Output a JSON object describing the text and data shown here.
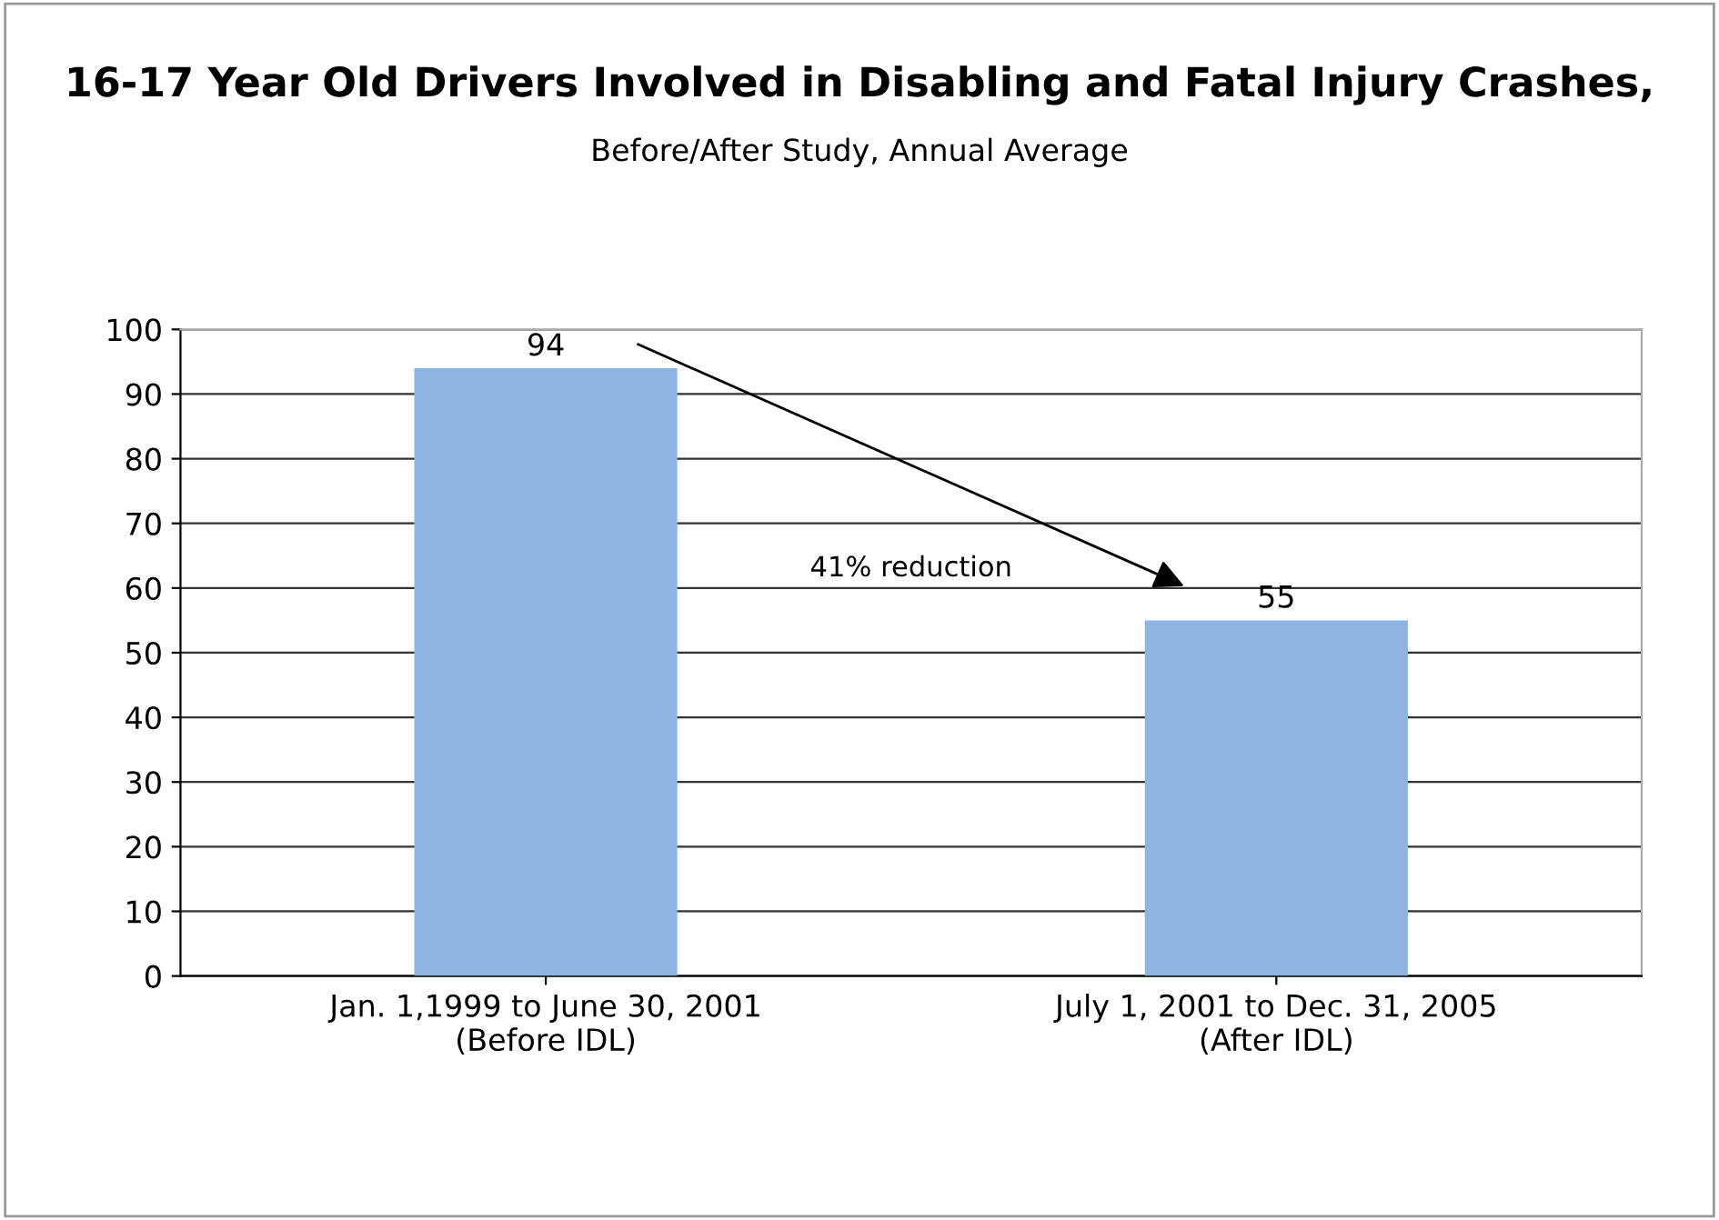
{
  "chart_data": {
    "type": "bar",
    "title": "16-17 Year Old Drivers Involved in Disabling and Fatal Injury Crashes,",
    "subtitle": "Before/After Study, Annual Average",
    "categories": [
      "Jan. 1,1999 to June 30, 2001\n(Before IDL)",
      "July 1, 2001 to Dec. 31, 2005\n(After IDL)"
    ],
    "values": [
      94,
      55
    ],
    "color": "#8db4e2",
    "ylim": [
      0,
      100
    ],
    "yticks": [
      0,
      10,
      20,
      30,
      40,
      50,
      60,
      70,
      80,
      90,
      100
    ],
    "grid": "y",
    "data_labels": true,
    "annotations": [
      "41% reduction"
    ]
  }
}
